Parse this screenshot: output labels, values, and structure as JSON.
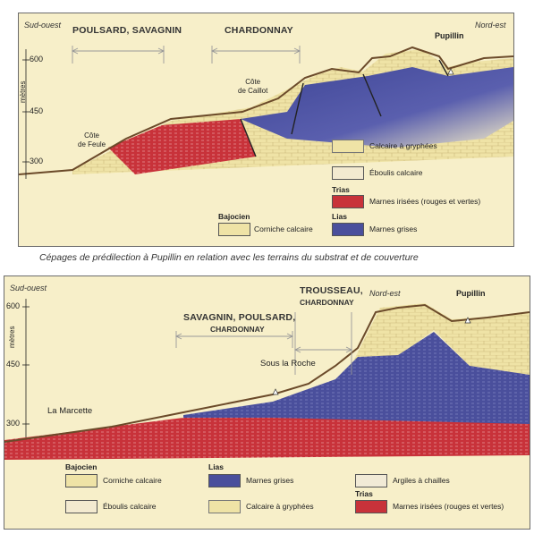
{
  "top": {
    "dir_left": "Sud-ouest",
    "dir_right": "Nord-est",
    "y_axis_label": "mètres",
    "ticks": [
      "600",
      "450",
      "300"
    ],
    "grapes_left": "POULSARD, SAVAGNIN",
    "grapes_mid": "CHARDONNAY",
    "village": "Pupillin",
    "place_feule": [
      "Côte",
      "de Feule"
    ],
    "place_caillot": [
      "Côte",
      "de Caillot"
    ],
    "legend": {
      "calcaire_gryphees": "Calcaire à gryphées",
      "eboulis": "Éboulis calcaire",
      "trias_head": "Trias",
      "marnes_irisees": "Marnes irisées (rouges et vertes)",
      "bajocien_head": "Bajocien",
      "corniche": "Corniche calcaire",
      "lias_head": "Lias",
      "marnes_grises": "Marnes grises"
    }
  },
  "caption": "Cépages de prédilection à Pupillin en relation avec les terrains du substrat et de couverture",
  "bottom": {
    "dir_left": "Sud-ouest",
    "dir_right": "Nord-est",
    "y_axis_label": "mètres",
    "ticks": [
      "600",
      "450",
      "300"
    ],
    "grapes_mid_1": "SAVAGNIN, POULSARD,",
    "grapes_mid_2": "CHARDONNAY",
    "grapes_right_1": "TROUSSEAU,",
    "grapes_right_2": "CHARDONNAY",
    "village": "Pupillin",
    "place_marcette": "La Marcette",
    "place_roche": "Sous la Roche",
    "legend": {
      "bajocien_head": "Bajocien",
      "corniche": "Corniche calcaire",
      "eboulis": "Éboulis calcaire",
      "lias_head": "Lias",
      "marnes_grises": "Marnes grises",
      "calcaire_gryphees": "Calcaire à gryphées",
      "argiles": "Argiles à chailles",
      "trias_head": "Trias",
      "marnes_irisees": "Marnes irisées (rouges et vertes)"
    }
  },
  "colors": {
    "background": "#f7efc9",
    "trias_red": "#c8323a",
    "lias_blue": "#4a4f9c",
    "calcaire": "#efe3a6"
  }
}
